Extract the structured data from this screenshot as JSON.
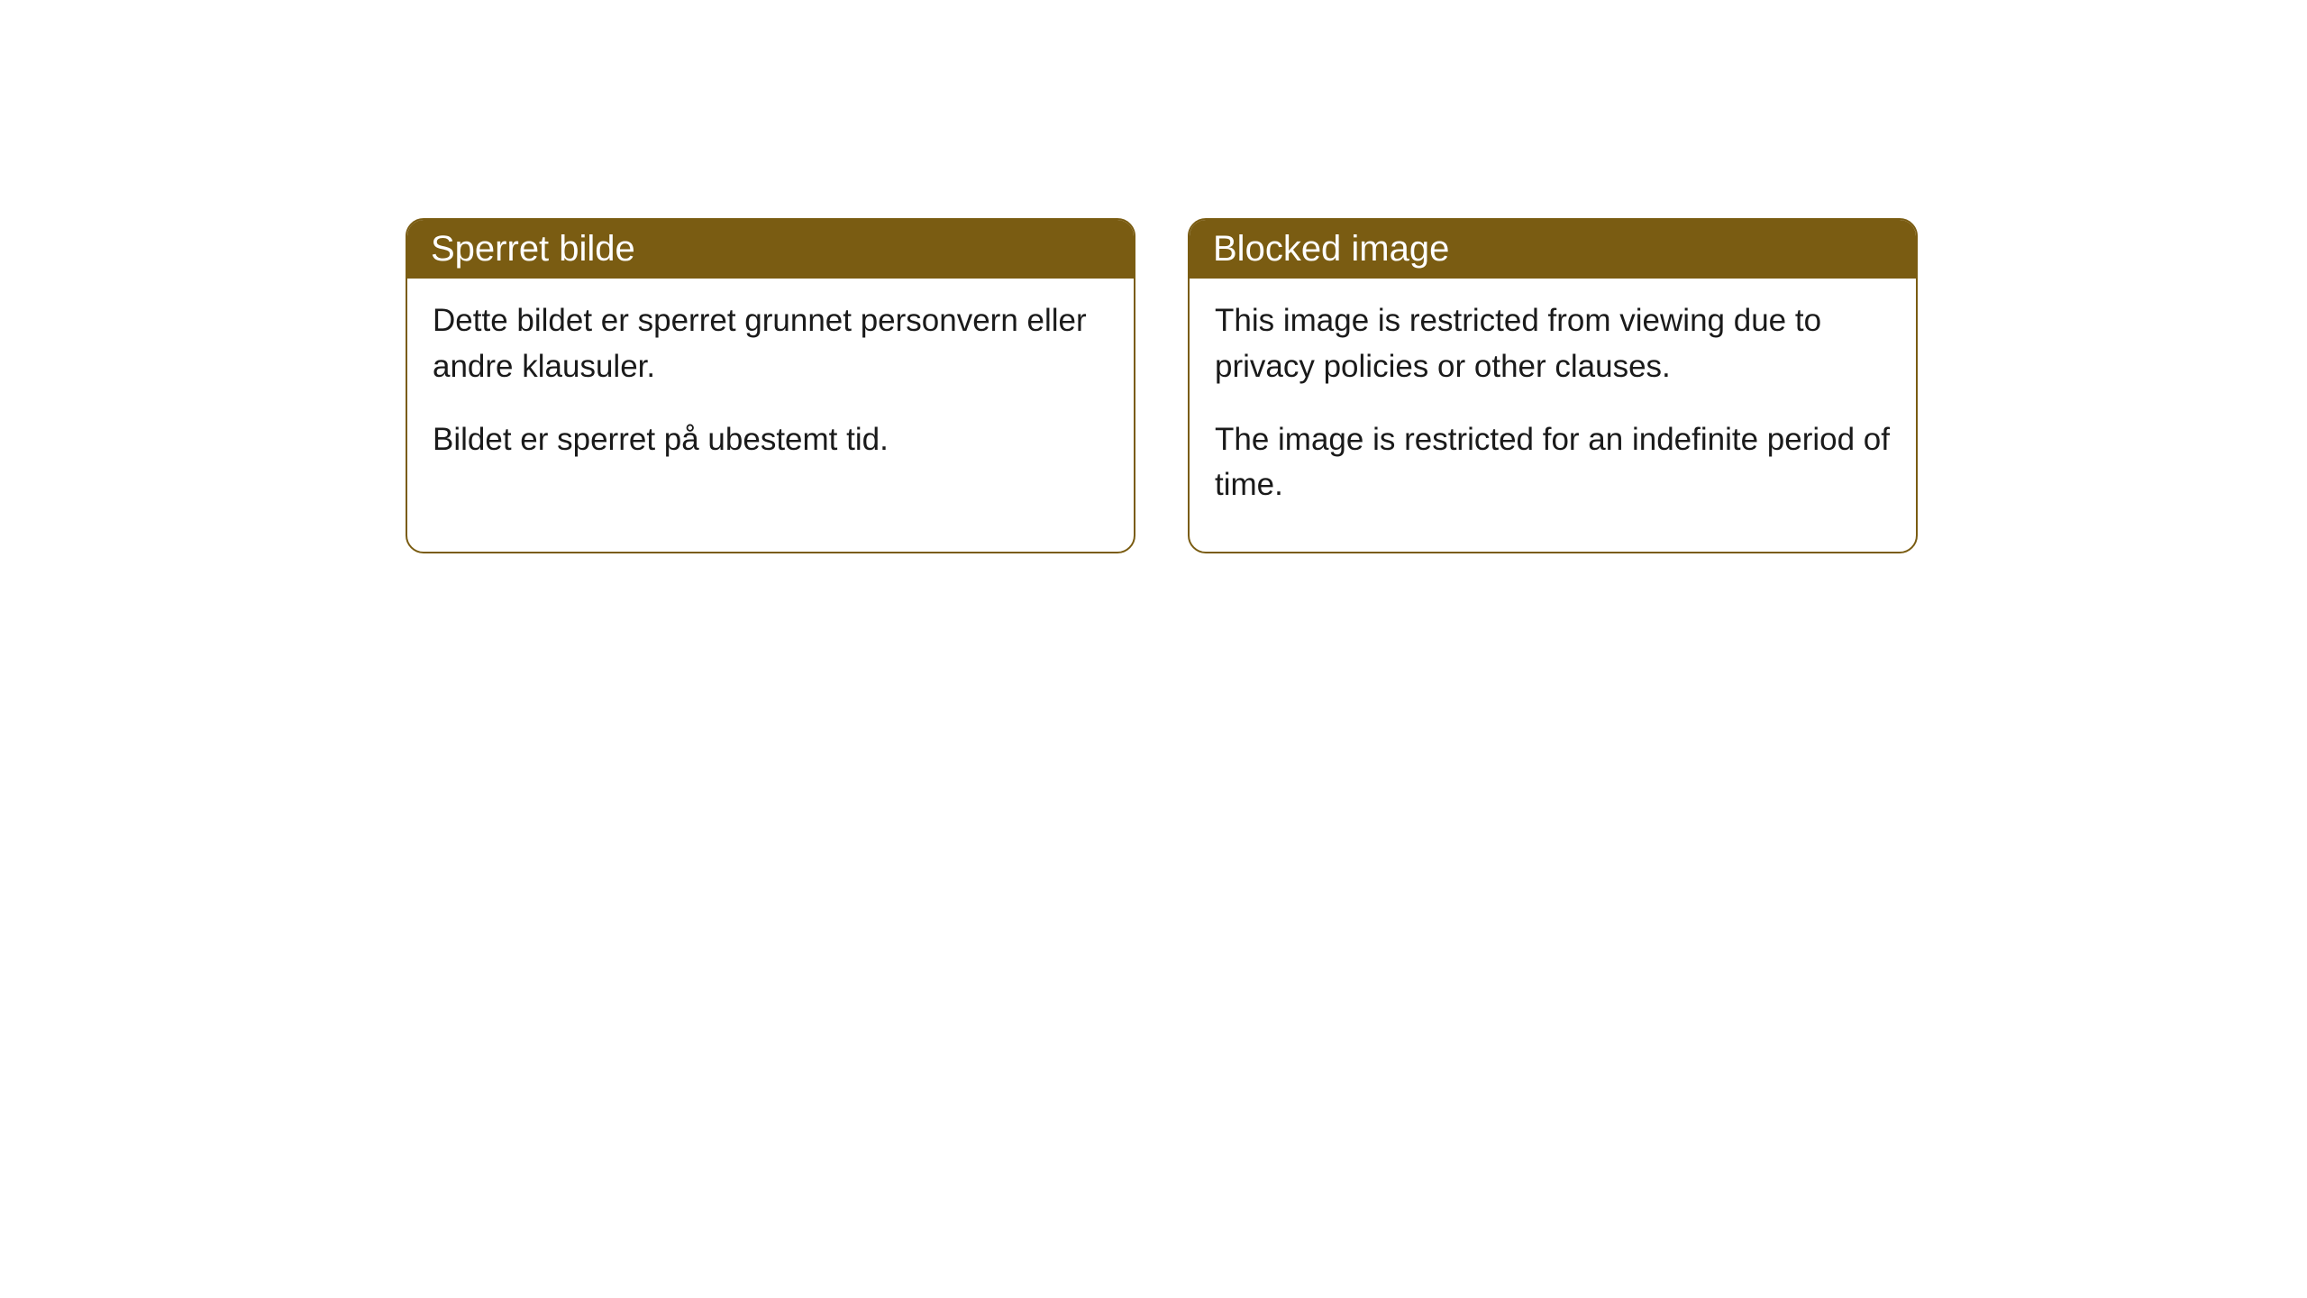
{
  "leftCard": {
    "header": "Sperret bilde",
    "line1": "Dette bildet er sperret grunnet personvern eller andre klausuler.",
    "line2": "Bildet er sperret på ubestemt tid."
  },
  "rightCard": {
    "header": "Blocked image",
    "line1": "This image is restricted from viewing due to privacy policies or other clauses.",
    "line2": "The image is restricted for an indefinite period of time."
  },
  "styling": {
    "headerBackground": "#7a5c12",
    "headerTextColor": "#ffffff",
    "cardBorderColor": "#7a5c12",
    "cardBackground": "#ffffff",
    "bodyTextColor": "#1a1a1a",
    "borderRadius": 20,
    "headerFontSize": 40,
    "bodyFontSize": 35,
    "cardWidth": 810,
    "cardGap": 58
  }
}
